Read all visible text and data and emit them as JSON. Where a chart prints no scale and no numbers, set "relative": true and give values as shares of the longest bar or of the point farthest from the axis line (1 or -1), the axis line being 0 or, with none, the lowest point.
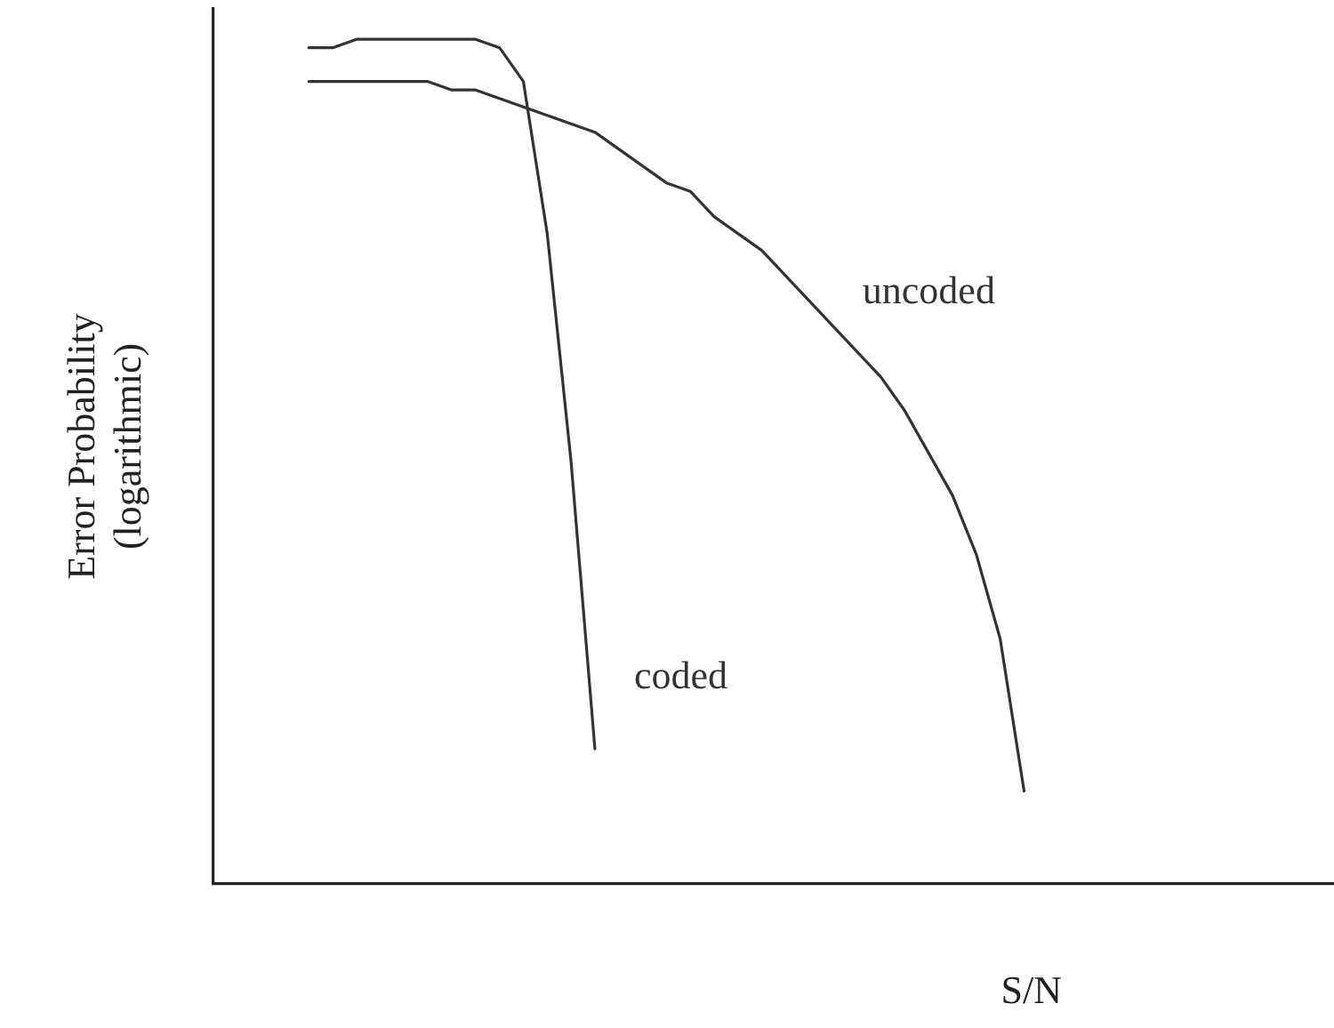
{
  "chart_data": {
    "type": "line",
    "relative": true,
    "xlabel": "S/N",
    "ylabel": "Error Probability\n(logarithmic)",
    "grid": false,
    "legend": false,
    "tick_labels": false,
    "marker": "none",
    "categories": [
      null,
      null,
      null,
      null,
      null,
      null,
      null,
      null,
      null,
      null,
      null,
      null,
      null,
      null,
      null,
      null,
      null,
      null,
      null,
      null,
      null,
      null,
      null,
      null,
      null,
      null,
      null,
      null,
      null,
      null,
      null,
      null,
      null,
      null,
      null,
      null,
      null,
      null,
      null,
      null,
      null,
      null,
      null,
      null,
      null,
      null,
      null,
      null
    ],
    "series": [
      {
        "name": "coded",
        "color": "#333333",
        "values": [
          null,
          null,
          null,
          null,
          0.99,
          0.99,
          1,
          1,
          1,
          1,
          1,
          1,
          0.99,
          0.95,
          0.77,
          0.5,
          0.16,
          null,
          null,
          null,
          null,
          null,
          null,
          null,
          null,
          null,
          null,
          null,
          null,
          null,
          null,
          null,
          null,
          null,
          null,
          null,
          null,
          null,
          null,
          null,
          null,
          null,
          null,
          null,
          null,
          null,
          null,
          null
        ]
      },
      {
        "name": "uncoded",
        "color": "#333333",
        "values": [
          null,
          null,
          null,
          null,
          0.95,
          0.95,
          0.95,
          0.95,
          0.95,
          0.95,
          0.94,
          0.94,
          0.93,
          0.92,
          0.91,
          0.9,
          0.89,
          0.87,
          0.85,
          0.83,
          0.82,
          0.79,
          0.77,
          0.75,
          0.72,
          0.69,
          0.66,
          0.63,
          0.6,
          0.56,
          0.51,
          0.46,
          0.39,
          0.29,
          0.11,
          null,
          null,
          null,
          null,
          null,
          null,
          null,
          null,
          null,
          null,
          null,
          null,
          null
        ]
      }
    ]
  }
}
